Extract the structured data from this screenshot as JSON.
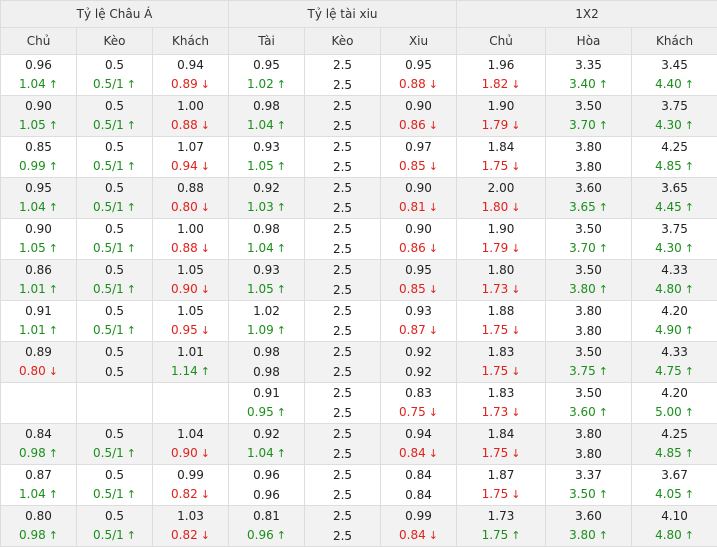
{
  "groups": [
    "Tỷ lệ Châu Á",
    "Tỷ lệ tài xiu",
    "1X2"
  ],
  "columns": [
    "Chủ",
    "Kèo",
    "Khách",
    "Tài",
    "Kèo",
    "Xiu",
    "Chủ",
    "Hòa",
    "Khách"
  ],
  "colors": {
    "up": "#1b8f1b",
    "down": "#e0211c",
    "header_bg": "#f0f0f0",
    "alt_row_bg": "#f2f2f2"
  },
  "icons": {
    "up": "arrow-up-icon",
    "down": "arrow-down-icon"
  },
  "rows": [
    [
      [
        "0.96",
        "1.04",
        "up"
      ],
      [
        "0.5",
        "0.5/1",
        "up"
      ],
      [
        "0.94",
        "0.89",
        "down"
      ],
      [
        "0.95",
        "1.02",
        "up"
      ],
      [
        "2.5",
        "2.5",
        ""
      ],
      [
        "0.95",
        "0.88",
        "down"
      ],
      [
        "1.96",
        "1.82",
        "down"
      ],
      [
        "3.35",
        "3.40",
        "up"
      ],
      [
        "3.45",
        "4.40",
        "up"
      ]
    ],
    [
      [
        "0.90",
        "1.05",
        "up"
      ],
      [
        "0.5",
        "0.5/1",
        "up"
      ],
      [
        "1.00",
        "0.88",
        "down"
      ],
      [
        "0.98",
        "1.04",
        "up"
      ],
      [
        "2.5",
        "2.5",
        ""
      ],
      [
        "0.90",
        "0.86",
        "down"
      ],
      [
        "1.90",
        "1.79",
        "down"
      ],
      [
        "3.50",
        "3.70",
        "up"
      ],
      [
        "3.75",
        "4.30",
        "up"
      ]
    ],
    [
      [
        "0.85",
        "0.99",
        "up"
      ],
      [
        "0.5",
        "0.5/1",
        "up"
      ],
      [
        "1.07",
        "0.94",
        "down"
      ],
      [
        "0.93",
        "1.05",
        "up"
      ],
      [
        "2.5",
        "2.5",
        ""
      ],
      [
        "0.97",
        "0.85",
        "down"
      ],
      [
        "1.84",
        "1.75",
        "down"
      ],
      [
        "3.80",
        "3.80",
        ""
      ],
      [
        "4.25",
        "4.85",
        "up"
      ]
    ],
    [
      [
        "0.95",
        "1.04",
        "up"
      ],
      [
        "0.5",
        "0.5/1",
        "up"
      ],
      [
        "0.88",
        "0.80",
        "down"
      ],
      [
        "0.92",
        "1.03",
        "up"
      ],
      [
        "2.5",
        "2.5",
        ""
      ],
      [
        "0.90",
        "0.81",
        "down"
      ],
      [
        "2.00",
        "1.80",
        "down"
      ],
      [
        "3.60",
        "3.65",
        "up"
      ],
      [
        "3.65",
        "4.45",
        "up"
      ]
    ],
    [
      [
        "0.90",
        "1.05",
        "up"
      ],
      [
        "0.5",
        "0.5/1",
        "up"
      ],
      [
        "1.00",
        "0.88",
        "down"
      ],
      [
        "0.98",
        "1.04",
        "up"
      ],
      [
        "2.5",
        "2.5",
        ""
      ],
      [
        "0.90",
        "0.86",
        "down"
      ],
      [
        "1.90",
        "1.79",
        "down"
      ],
      [
        "3.50",
        "3.70",
        "up"
      ],
      [
        "3.75",
        "4.30",
        "up"
      ]
    ],
    [
      [
        "0.86",
        "1.01",
        "up"
      ],
      [
        "0.5",
        "0.5/1",
        "up"
      ],
      [
        "1.05",
        "0.90",
        "down"
      ],
      [
        "0.93",
        "1.05",
        "up"
      ],
      [
        "2.5",
        "2.5",
        ""
      ],
      [
        "0.95",
        "0.85",
        "down"
      ],
      [
        "1.80",
        "1.73",
        "down"
      ],
      [
        "3.50",
        "3.80",
        "up"
      ],
      [
        "4.33",
        "4.80",
        "up"
      ]
    ],
    [
      [
        "0.91",
        "1.01",
        "up"
      ],
      [
        "0.5",
        "0.5/1",
        "up"
      ],
      [
        "1.05",
        "0.95",
        "down"
      ],
      [
        "1.02",
        "1.09",
        "up"
      ],
      [
        "2.5",
        "2.5",
        ""
      ],
      [
        "0.93",
        "0.87",
        "down"
      ],
      [
        "1.88",
        "1.75",
        "down"
      ],
      [
        "3.80",
        "3.80",
        ""
      ],
      [
        "4.20",
        "4.90",
        "up"
      ]
    ],
    [
      [
        "0.89",
        "0.80",
        "down"
      ],
      [
        "0.5",
        "0.5",
        ""
      ],
      [
        "1.01",
        "1.14",
        "up"
      ],
      [
        "0.98",
        "0.98",
        ""
      ],
      [
        "2.5",
        "2.5",
        ""
      ],
      [
        "0.92",
        "0.92",
        ""
      ],
      [
        "1.83",
        "1.75",
        "down"
      ],
      [
        "3.50",
        "3.75",
        "up"
      ],
      [
        "4.33",
        "4.75",
        "up"
      ]
    ],
    [
      [
        "",
        "",
        ""
      ],
      [
        "",
        "",
        ""
      ],
      [
        "",
        "",
        ""
      ],
      [
        "0.91",
        "0.95",
        "up"
      ],
      [
        "2.5",
        "2.5",
        ""
      ],
      [
        "0.83",
        "0.75",
        "down"
      ],
      [
        "1.83",
        "1.73",
        "down"
      ],
      [
        "3.50",
        "3.60",
        "up"
      ],
      [
        "4.20",
        "5.00",
        "up"
      ]
    ],
    [
      [
        "0.84",
        "0.98",
        "up"
      ],
      [
        "0.5",
        "0.5/1",
        "up"
      ],
      [
        "1.04",
        "0.90",
        "down"
      ],
      [
        "0.92",
        "1.04",
        "up"
      ],
      [
        "2.5",
        "2.5",
        ""
      ],
      [
        "0.94",
        "0.84",
        "down"
      ],
      [
        "1.84",
        "1.75",
        "down"
      ],
      [
        "3.80",
        "3.80",
        ""
      ],
      [
        "4.25",
        "4.85",
        "up"
      ]
    ],
    [
      [
        "0.87",
        "1.04",
        "up"
      ],
      [
        "0.5",
        "0.5/1",
        "up"
      ],
      [
        "0.99",
        "0.82",
        "down"
      ],
      [
        "0.96",
        "0.96",
        ""
      ],
      [
        "2.5",
        "2.5",
        ""
      ],
      [
        "0.84",
        "0.84",
        ""
      ],
      [
        "1.87",
        "1.75",
        "down"
      ],
      [
        "3.37",
        "3.50",
        "up"
      ],
      [
        "3.67",
        "4.05",
        "up"
      ]
    ],
    [
      [
        "0.80",
        "0.98",
        "up"
      ],
      [
        "0.5",
        "0.5/1",
        "up"
      ],
      [
        "1.03",
        "0.82",
        "down"
      ],
      [
        "0.81",
        "0.96",
        "up"
      ],
      [
        "2.5",
        "2.5",
        ""
      ],
      [
        "0.99",
        "0.84",
        "down"
      ],
      [
        "1.73",
        "1.75",
        "up"
      ],
      [
        "3.60",
        "3.80",
        "up"
      ],
      [
        "4.10",
        "4.80",
        "up"
      ]
    ]
  ]
}
